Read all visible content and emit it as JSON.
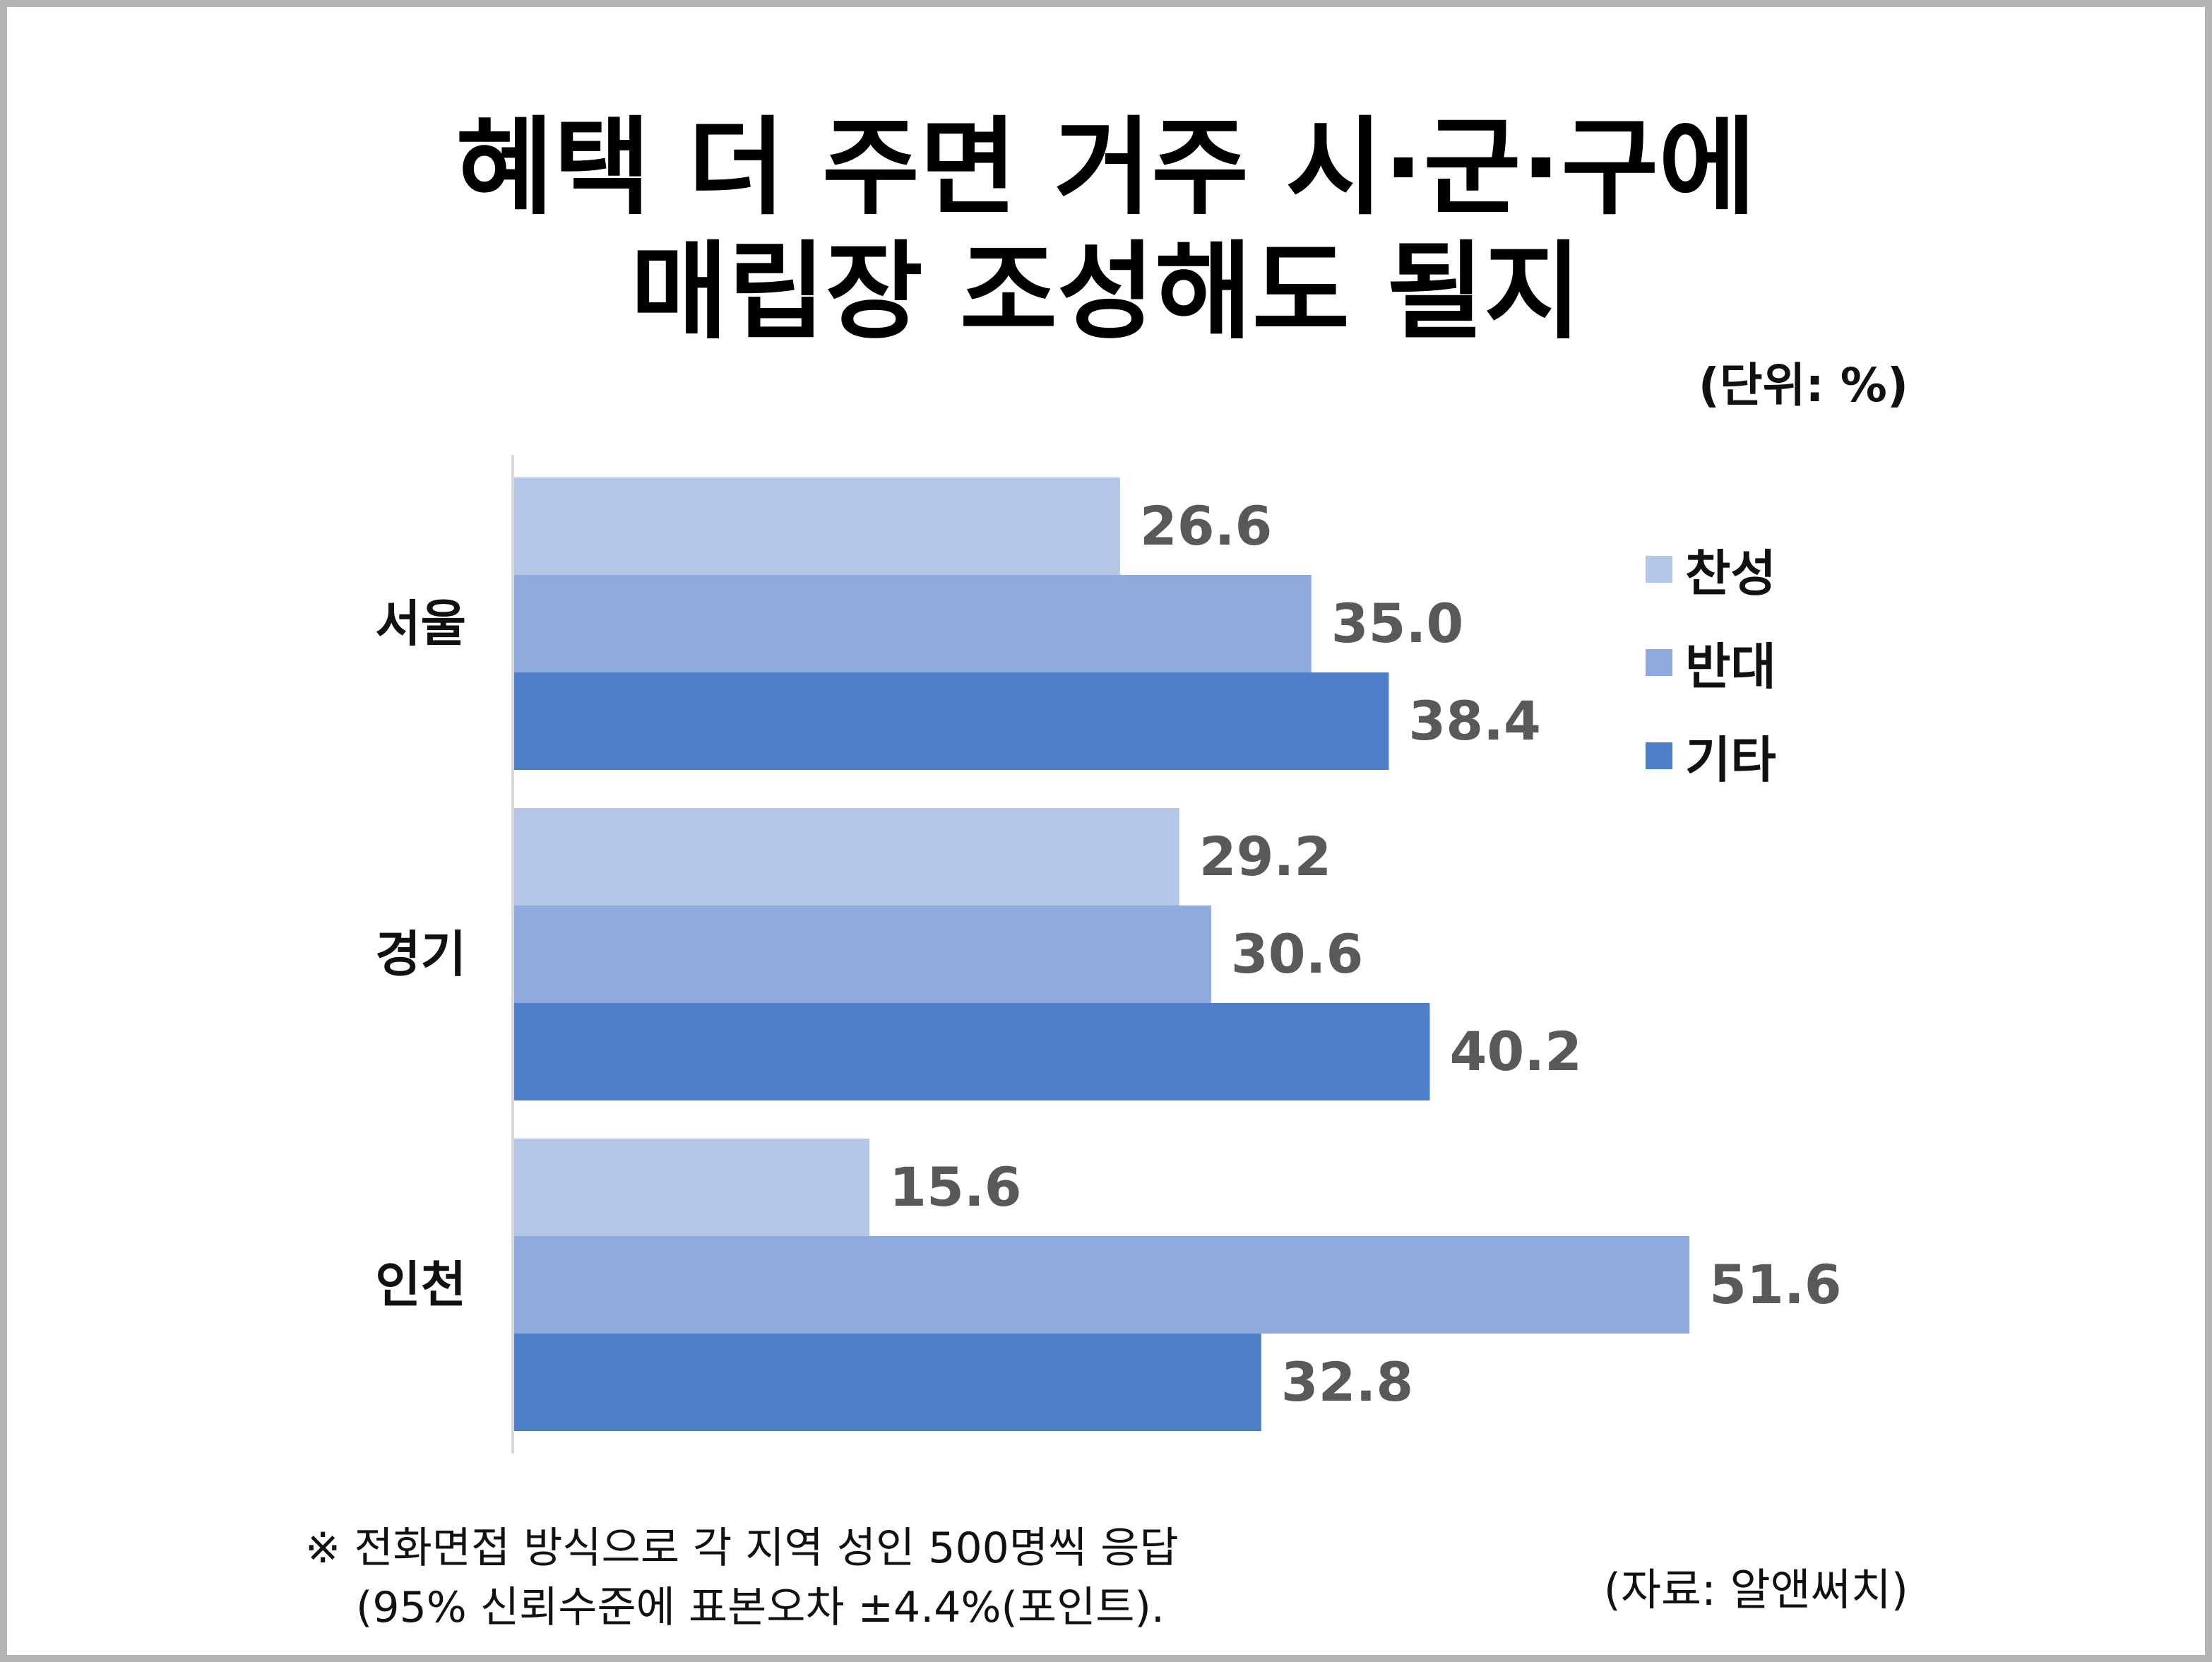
{
  "title": {
    "line1": "혜택 더 주면 거주 시·군·구에",
    "line2": "매립장 조성해도 될지"
  },
  "unit_label": "(단위: %)",
  "footnote": {
    "line1": "※ 전화면접 방식으로 각 지역 성인 500명씩 응답",
    "line2": "(95% 신뢰수준에 표본오차 ±4.4%(포인트)."
  },
  "source": "(자료:  알앤써치)",
  "colors": {
    "찬성": "#b4c7e7",
    "반대": "#8faadc",
    "기타": "#4f7ec9",
    "value_label": "#595959"
  },
  "chart_data": {
    "type": "bar",
    "orientation": "horizontal",
    "categories": [
      "서울",
      "경기",
      "인천"
    ],
    "series": [
      {
        "name": "찬성",
        "values": [
          26.6,
          29.2,
          15.6
        ]
      },
      {
        "name": "반대",
        "values": [
          35.0,
          30.6,
          51.6
        ]
      },
      {
        "name": "기타",
        "values": [
          38.4,
          40.2,
          32.8
        ]
      }
    ],
    "value_labels": [
      [
        "26.6",
        "29.2",
        "15.6"
      ],
      [
        "35.0",
        "30.6",
        "51.6"
      ],
      [
        "38.4",
        "40.2",
        "32.8"
      ]
    ],
    "xlim": [
      0,
      60
    ],
    "grid": false,
    "legend_position": "right"
  }
}
